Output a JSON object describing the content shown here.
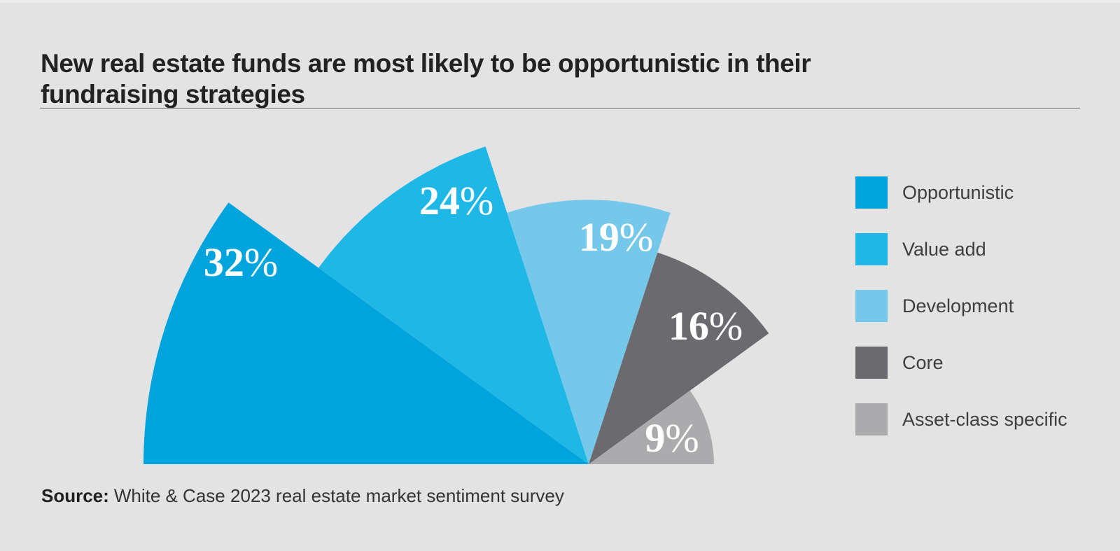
{
  "page": {
    "background_color": "#e3e3e4"
  },
  "header": {
    "title": "New real estate funds are most likely to be opportunistic in their\nfundraising strategies"
  },
  "chart_data": {
    "type": "pie",
    "variant": "fan-rose",
    "description": "Half-fan (Opera-House style) chart: 5 sectors of equal 36-degree angular span sharing one pivot point on the baseline; sector radius is proportional to its value; sectors fan from left (180deg) to right (0deg); white percentage labels sit inside each sector.",
    "unit": "%",
    "total": 100,
    "series": [
      {
        "label": "Opportunistic",
        "value": 32,
        "data_label": "32%",
        "color": "#00a4dd"
      },
      {
        "label": "Value add",
        "value": 24,
        "data_label": "24%",
        "color": "#1fb7e6"
      },
      {
        "label": "Development",
        "value": 19,
        "data_label": "19%",
        "color": "#76c8eb"
      },
      {
        "label": "Core",
        "value": 16,
        "data_label": "16%",
        "color": "#6b6b6f"
      },
      {
        "label": "Asset-class specific",
        "value": 9,
        "data_label": "9%",
        "color": "#ababae"
      }
    ],
    "legend_position": "right",
    "axes": "none",
    "grid": false
  },
  "source": {
    "label": "Source:",
    "text": "White & Case 2023 real estate market sentiment survey"
  }
}
